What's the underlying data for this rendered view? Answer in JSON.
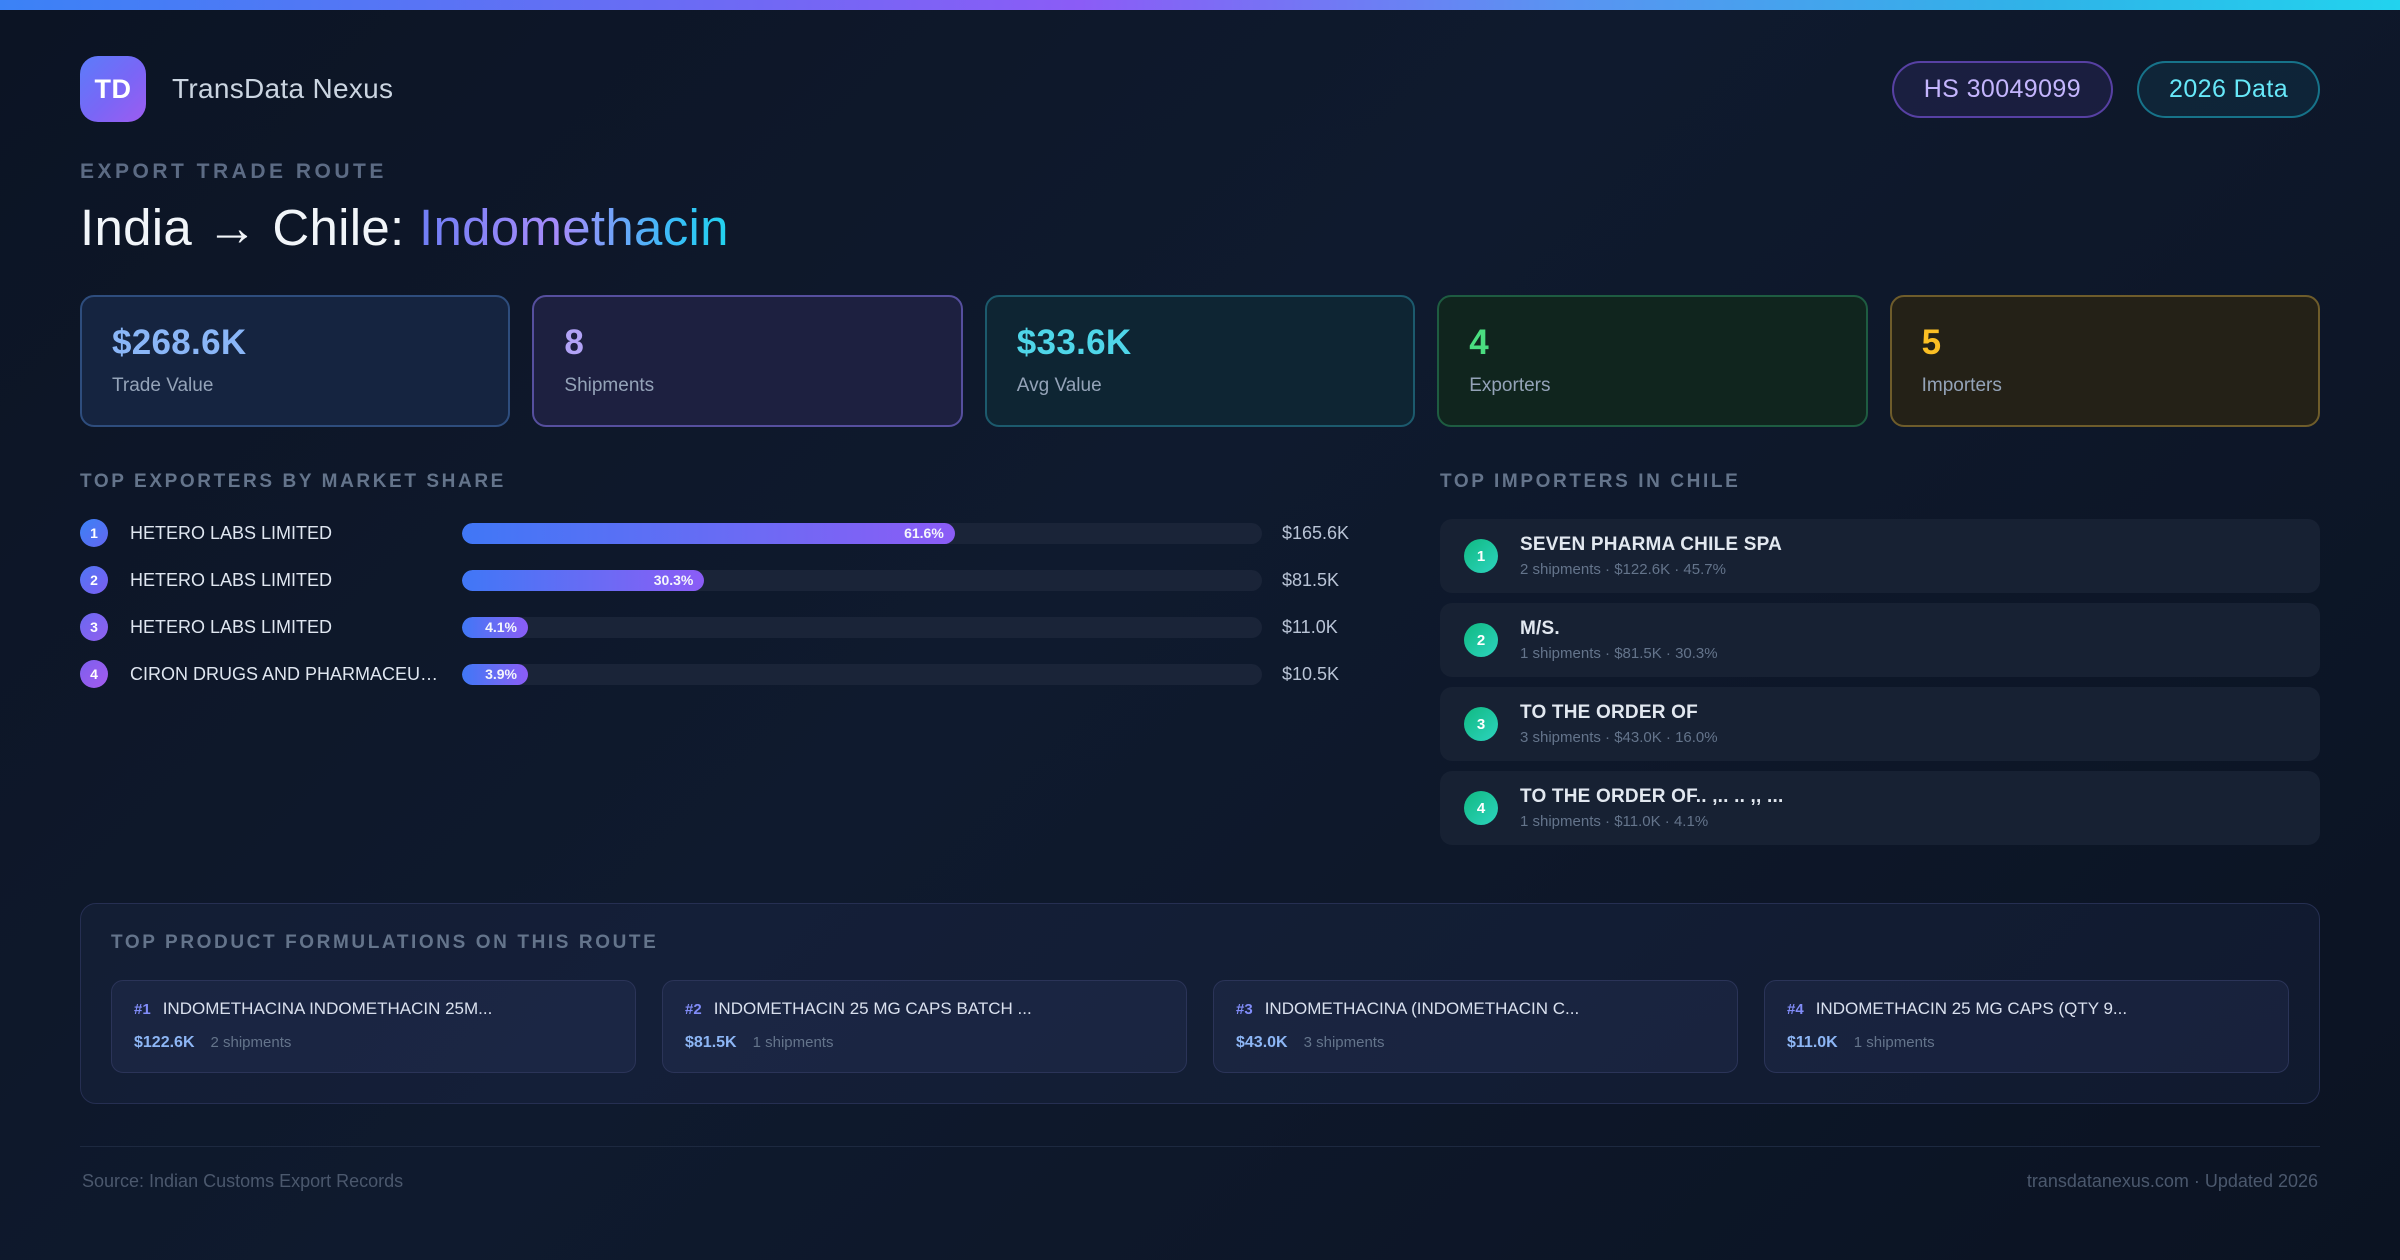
{
  "colors": {
    "accent_blue": "#3b82f6",
    "accent_purple": "#8b5cf6",
    "accent_cyan": "#22d3ee",
    "accent_green": "#4ade80",
    "accent_amber": "#fbbf24",
    "importer_badge_teal": "#10b981"
  },
  "header": {
    "logo_text": "TD",
    "brand": "TransData Nexus",
    "badges": [
      {
        "label": "HS 30049099"
      },
      {
        "label": "2026 Data"
      }
    ]
  },
  "hero": {
    "eyebrow": "EXPORT TRADE ROUTE",
    "title_prefix": "India → Chile: ",
    "title_highlight": "Indomethacin"
  },
  "stats": [
    {
      "value": "$268.6K",
      "label": "Trade Value",
      "accent": "#8ab6f7",
      "border": "#2e4d7d",
      "bg": "#152440"
    },
    {
      "value": "8",
      "label": "Shipments",
      "accent": "#b2a3f7",
      "border": "#564f9e",
      "bg": "#1d2040"
    },
    {
      "value": "$33.6K",
      "label": "Avg Value",
      "accent": "#4fd6e9",
      "border": "#1c5a6d",
      "bg": "#0e2533"
    },
    {
      "value": "4",
      "label": "Exporters",
      "accent": "#4ade80",
      "border": "#1e5c41",
      "bg": "#10251e"
    },
    {
      "value": "5",
      "label": "Importers",
      "accent": "#fbbf24",
      "border": "#6e5c2b",
      "bg": "#242117"
    }
  ],
  "exporters": {
    "heading": "TOP EXPORTERS BY MARKET SHARE",
    "rows": [
      {
        "rank": "1",
        "name": "HETERO LABS LIMITED",
        "share_pct": 61.6,
        "share_label": "61.6%",
        "value": "$165.6K"
      },
      {
        "rank": "2",
        "name": "HETERO LABS LIMITED",
        "share_pct": 30.3,
        "share_label": "30.3%",
        "value": "$81.5K"
      },
      {
        "rank": "3",
        "name": "HETERO LABS LIMITED",
        "share_pct": 4.1,
        "share_label": "4.1%",
        "value": "$11.0K"
      },
      {
        "rank": "4",
        "name": "CIRON DRUGS AND PHARMACEUT...",
        "share_pct": 3.9,
        "share_label": "3.9%",
        "value": "$10.5K"
      }
    ]
  },
  "importers": {
    "heading": "TOP IMPORTERS IN CHILE",
    "rows": [
      {
        "rank": "1",
        "name": "SEVEN PHARMA CHILE SPA",
        "meta": "2 shipments · $122.6K · 45.7%"
      },
      {
        "rank": "2",
        "name": "M/S.",
        "meta": "1 shipments · $81.5K · 30.3%"
      },
      {
        "rank": "3",
        "name": "TO THE ORDER OF",
        "meta": "3 shipments · $43.0K · 16.0%"
      },
      {
        "rank": "4",
        "name": "TO THE ORDER OF.. ,.. .. ,, ...",
        "meta": "1 shipments · $11.0K · 4.1%"
      }
    ]
  },
  "formulations": {
    "heading": "TOP PRODUCT FORMULATIONS ON THIS ROUTE",
    "cards": [
      {
        "rank": "#1",
        "name": "INDOMETHACINA INDOMETHACIN 25M...",
        "value": "$122.6K",
        "shipments": "2 shipments"
      },
      {
        "rank": "#2",
        "name": "INDOMETHACIN 25 MG CAPS BATCH ...",
        "value": "$81.5K",
        "shipments": "1 shipments"
      },
      {
        "rank": "#3",
        "name": "INDOMETHACINA (INDOMETHACIN C...",
        "value": "$43.0K",
        "shipments": "3 shipments"
      },
      {
        "rank": "#4",
        "name": "INDOMETHACIN 25 MG CAPS (QTY 9...",
        "value": "$11.0K",
        "shipments": "1 shipments"
      }
    ]
  },
  "footer": {
    "source": "Source: Indian Customs Export Records",
    "site": "transdatanexus.com · Updated 2026"
  }
}
